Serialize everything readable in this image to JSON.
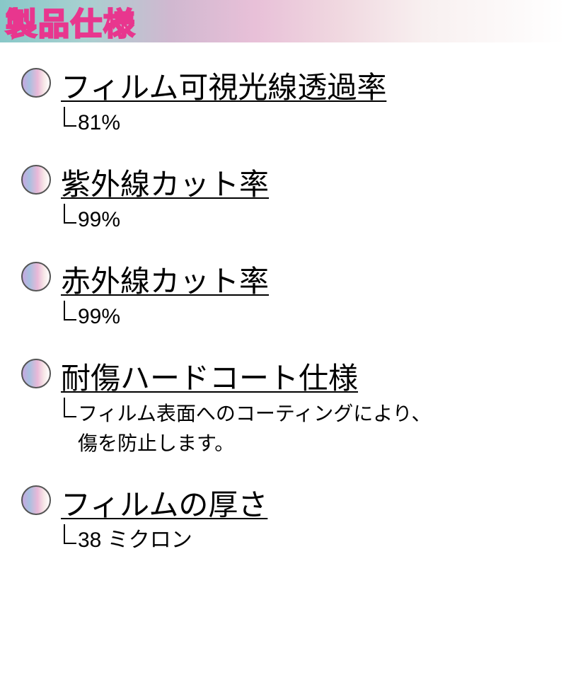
{
  "header": {
    "title": "製品仕様",
    "gradient_colors": [
      "#88c8c8",
      "#a8d0d0",
      "#d0b8d0",
      "#e8c0d8",
      "#f0d8e0",
      "#f8f0f0",
      "#ffffff"
    ],
    "title_color": "#ffffff",
    "title_stroke_color": "#e8368e",
    "title_fontsize": 44
  },
  "bullet_style": {
    "diameter": 42,
    "border_color": "#555",
    "gradient_colors": [
      "#c8a8e0",
      "#a8c0e0",
      "#e8b8d8",
      "#f8e8e8",
      "#ffffff"
    ]
  },
  "specs": [
    {
      "label": "フィルム可視光線透過率",
      "value": "81%",
      "multiline": false
    },
    {
      "label": "紫外線カット率",
      "value": "99%",
      "multiline": false
    },
    {
      "label": "赤外線カット率",
      "value": "99%",
      "multiline": false
    },
    {
      "label": "耐傷ハードコート仕様",
      "value_line1": "フィルム表面へのコーティングにより、",
      "value_line2": "傷を防止します。",
      "multiline": true
    },
    {
      "label": "フィルムの厚さ",
      "value": "38 ミクロン",
      "multiline": false
    }
  ],
  "typography": {
    "label_fontsize": 42,
    "value_fontsize": 30,
    "multiline_fontsize": 28,
    "text_color": "#000000"
  },
  "background_color": "#ffffff"
}
